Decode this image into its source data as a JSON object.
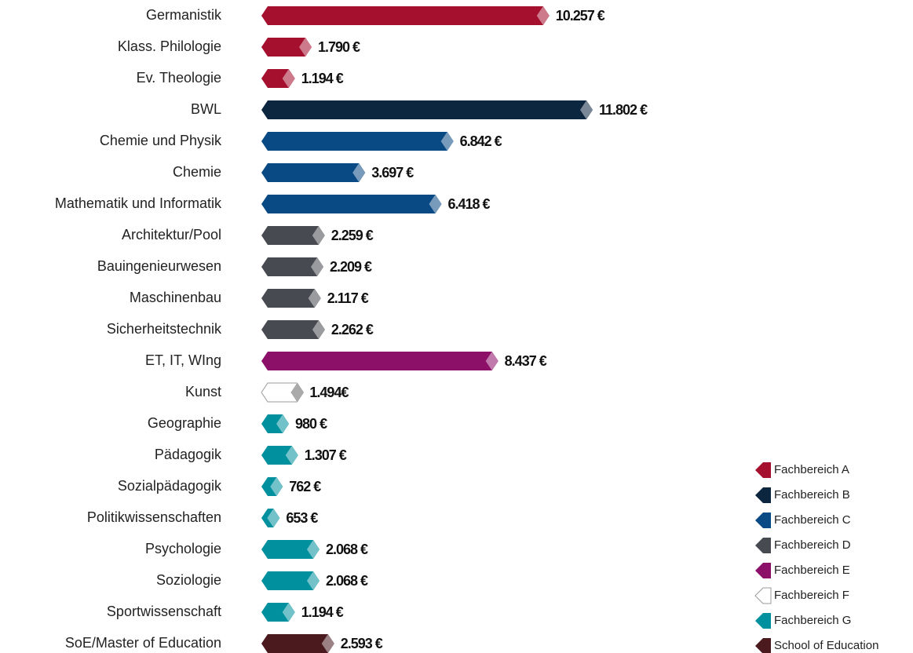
{
  "chart_data": {
    "type": "bar",
    "orientation": "horizontal",
    "categories": [
      "Germanistik",
      "Klass. Philologie",
      "Ev. Theologie",
      "BWL",
      "Chemie und Physik",
      "Chemie",
      "Mathematik und Informatik",
      "Architektur/Pool",
      "Bauingenieurwesen",
      "Maschinenbau",
      "Sicherheitstechnik",
      "ET, IT, WIng",
      "Kunst",
      "Geographie",
      "Pädagogik",
      "Sozialpädagogik",
      "Politikwissenschaften",
      "Psychologie",
      "Soziologie",
      "Sportwissenschaft",
      "SoE/Master of Education"
    ],
    "values": [
      10257,
      1790,
      1194,
      11802,
      6842,
      3697,
      6418,
      2259,
      2209,
      2117,
      2262,
      8437,
      1494,
      980,
      1307,
      762,
      653,
      2068,
      2068,
      1194,
      2593
    ],
    "value_labels": [
      "10.257 €",
      "1.790 €",
      "1.194 €",
      "11.802 €",
      "6.842 €",
      "3.697 €",
      "6.418 €",
      "2.259 €",
      "2.209 €",
      "2.117 €",
      "2.262 €",
      "8.437 €",
      "1.494€",
      "980 €",
      "1.307 €",
      "762 €",
      "653 €",
      "2.068 €",
      "2.068 €",
      "1.194 €",
      "2.593 €"
    ],
    "colors": [
      "#a4102e",
      "#a4102e",
      "#a4102e",
      "#0d2640",
      "#0a4a84",
      "#0a4a84",
      "#0a4a84",
      "#474a50",
      "#474a50",
      "#474a50",
      "#474a50",
      "#8c1068",
      "#ffffff",
      "#00909e",
      "#00909e",
      "#00909e",
      "#00909e",
      "#00909e",
      "#00909e",
      "#00909e",
      "#4a1a1f"
    ],
    "legend": [
      {
        "name": "Fachbereich A",
        "color": "#a4102e"
      },
      {
        "name": "Fachbereich B",
        "color": "#0d2640"
      },
      {
        "name": "Fachbereich C",
        "color": "#0a4a84"
      },
      {
        "name": "Fachbereich D",
        "color": "#474a50"
      },
      {
        "name": "Fachbereich E",
        "color": "#8c1068"
      },
      {
        "name": "Fachbereich F",
        "color": "#ffffff"
      },
      {
        "name": "Fachbereich G",
        "color": "#00909e"
      },
      {
        "name": "School of Education",
        "color": "#4a1a1f"
      }
    ]
  }
}
